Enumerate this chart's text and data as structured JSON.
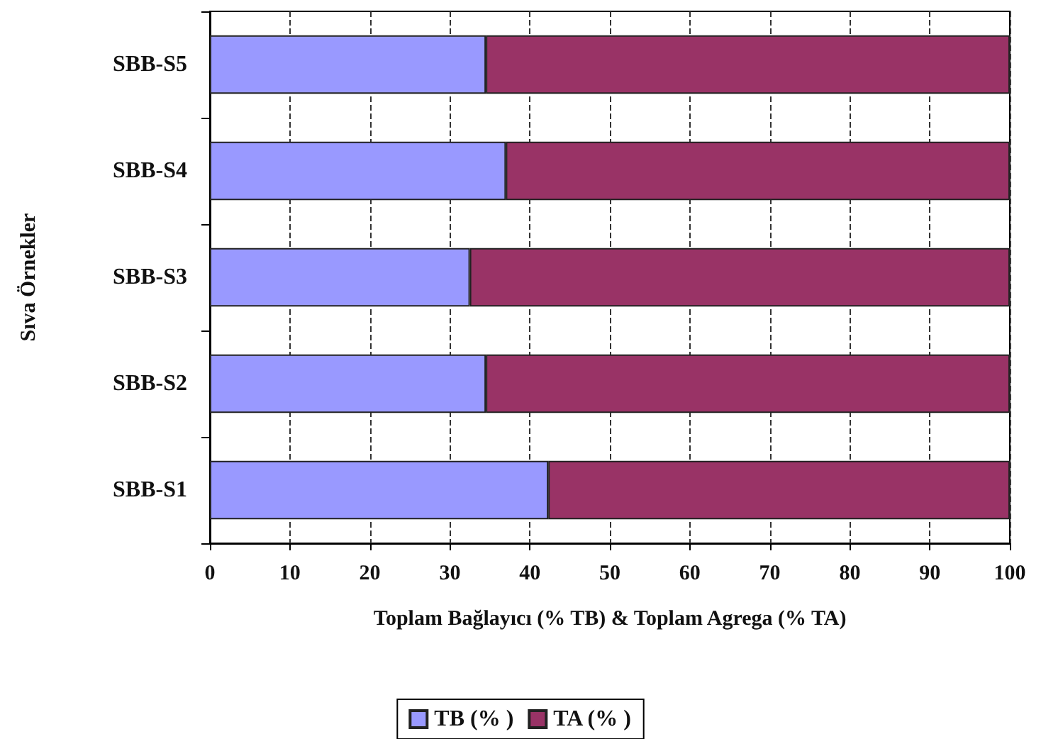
{
  "chart_data": {
    "type": "bar",
    "orientation": "horizontal",
    "stacked": true,
    "xlabel": "Toplam Bağlayıcı (% TB) & Toplam Agrega (% TA)",
    "ylabel": "Sıva Örnekler",
    "categories": [
      "SBB-S5",
      "SBB-S4",
      "SBB-S3",
      "SBB-S2",
      "SBB-S1"
    ],
    "series": [
      {
        "name": "TB (% )",
        "color": "#9999ff",
        "values": [
          34.5,
          37,
          32.5,
          34.5,
          42.3
        ]
      },
      {
        "name": "TA (% )",
        "color": "#993366",
        "values": [
          65.5,
          63,
          67.5,
          65.5,
          57.7
        ]
      }
    ],
    "xlim": [
      0,
      100
    ],
    "xticks": [
      0,
      10,
      20,
      30,
      40,
      50,
      60,
      70,
      80,
      90,
      100
    ],
    "grid": "x",
    "legend": "bottom"
  }
}
